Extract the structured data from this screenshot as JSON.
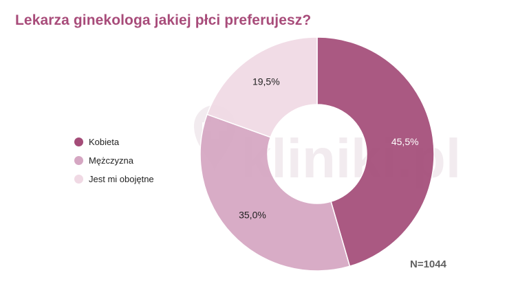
{
  "chart_data": {
    "type": "pie",
    "title": "Lekarza ginekologa jakiej płci preferujesz?",
    "categories": [
      "Kobieta",
      "Mężczyzna",
      "Jest mi obojętne"
    ],
    "values": [
      45.5,
      35.0,
      19.5
    ],
    "value_labels": [
      "45,5%",
      "35,0%",
      "19,5%"
    ],
    "colors": [
      "#a44c78",
      "#d5a6c2",
      "#f0d9e4"
    ],
    "label_colors": [
      "#ffffff",
      "#222222",
      "#222222"
    ],
    "donut": true,
    "legend_position": "left",
    "annotation": "N=1044",
    "watermark": "kliniki.pl"
  }
}
